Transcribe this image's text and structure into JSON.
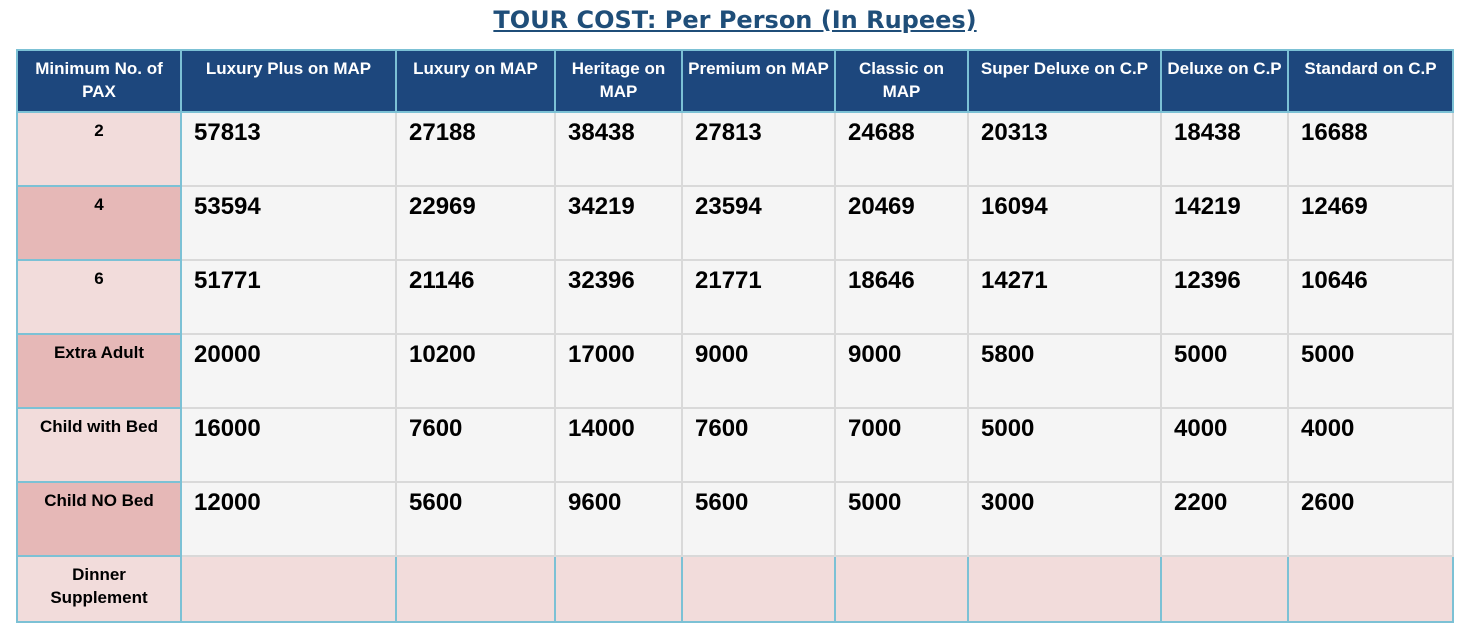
{
  "title": "TOUR COST: Per Person (In Rupees)",
  "headers": [
    "Minimum No. of PAX",
    "Luxury Plus on MAP",
    "Luxury on MAP",
    "Heritage on MAP",
    "Premium on MAP",
    "Classic on MAP",
    "Super Deluxe on C.P",
    "Deluxe on C.P",
    "Standard on C.P"
  ],
  "rows": [
    {
      "label": "2",
      "values": [
        "57813",
        "27188",
        "38438",
        "27813",
        "24688",
        "20313",
        "18438",
        "16688"
      ]
    },
    {
      "label": "4",
      "values": [
        "53594",
        "22969",
        "34219",
        "23594",
        "20469",
        "16094",
        "14219",
        "12469"
      ]
    },
    {
      "label": "6",
      "values": [
        "51771",
        "21146",
        "32396",
        "21771",
        "18646",
        "14271",
        "12396",
        "10646"
      ]
    },
    {
      "label": "Extra Adult",
      "values": [
        "20000",
        "10200",
        "17000",
        "9000",
        "9000",
        "5800",
        "5000",
        "5000"
      ]
    },
    {
      "label": "Child with Bed",
      "values": [
        "16000",
        "7600",
        "14000",
        "7600",
        "7000",
        "5000",
        "4000",
        "4000"
      ]
    },
    {
      "label": "Child NO Bed",
      "values": [
        "12000",
        "5600",
        "9600",
        "5600",
        "5000",
        "3000",
        "2200",
        "2600"
      ]
    },
    {
      "label": "Dinner Supplement",
      "values": [
        "",
        "",
        "",
        "",
        "",
        "",
        "",
        ""
      ]
    }
  ],
  "colors": {
    "header_bg": "#1d477d",
    "label_light": "#f2dcdb",
    "label_dark": "#e6b8b7",
    "border": "#7cc1d5"
  }
}
